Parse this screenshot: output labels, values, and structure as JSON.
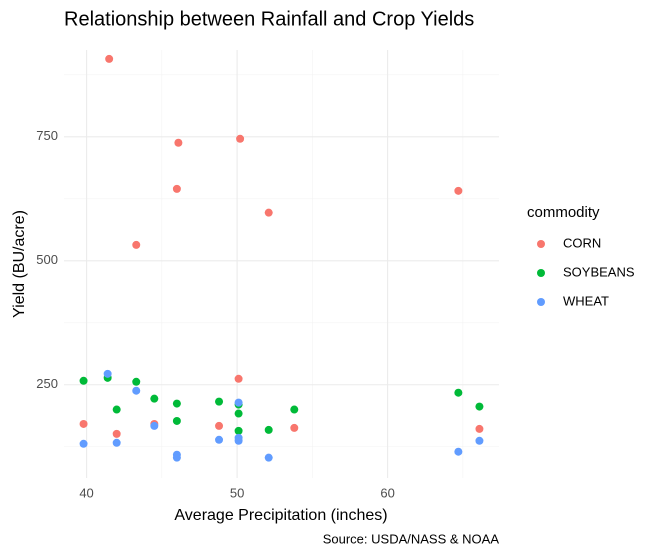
{
  "chart_data": {
    "type": "scatter",
    "title": "Relationship between Rainfall and Crop Yields",
    "x_label": "Average Precipitation (inches)",
    "y_label": "Yield (BU/acre)",
    "caption": "Source: USDA/NASS & NOAA",
    "legend_title": "commodity",
    "legend_position": "right",
    "grid": true,
    "xlim": [
      38.5,
      67.4
    ],
    "xticks": [
      40,
      50,
      60
    ],
    "xminor": [
      45,
      55,
      65
    ],
    "ylim": [
      62,
      925
    ],
    "yticks": [
      250,
      500,
      750
    ],
    "yminor": [
      125,
      375,
      625,
      875
    ],
    "series": [
      {
        "name": "CORN",
        "color": "#F8766D",
        "x": [
          41.5,
          46.1,
          50.2,
          46.0,
          52.1,
          43.3,
          64.7,
          50.1,
          39.8,
          42.0,
          44.5,
          48.8,
          53.8,
          66.1
        ],
        "values": [
          907,
          738,
          746,
          645,
          597,
          532,
          641,
          262,
          171,
          151,
          171,
          167,
          163,
          161
        ]
      },
      {
        "name": "SOYBEANS",
        "color": "#00BA38",
        "x": [
          39.8,
          41.4,
          43.3,
          42.0,
          44.5,
          46.0,
          46.0,
          48.8,
          50.1,
          50.1,
          50.1,
          52.1,
          53.8,
          64.7,
          66.1
        ],
        "values": [
          258,
          264,
          256,
          200,
          222,
          212,
          177,
          216,
          210,
          192,
          157,
          159,
          200,
          234,
          206
        ]
      },
      {
        "name": "WHEAT",
        "color": "#619CFF",
        "x": [
          41.4,
          43.3,
          39.8,
          42.0,
          44.5,
          46.0,
          46.0,
          48.8,
          50.1,
          50.1,
          50.1,
          52.1,
          64.7,
          66.1
        ],
        "values": [
          272,
          238,
          131,
          133,
          167,
          109,
          103,
          139,
          214,
          143,
          137,
          103,
          115,
          137
        ]
      }
    ]
  }
}
